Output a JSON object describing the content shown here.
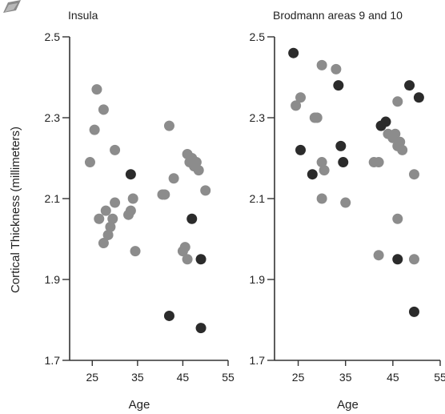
{
  "chart_data": {
    "type": "scatter",
    "ylabel": "Cortical Thickness (millimeters)",
    "ylim": [
      1.7,
      2.5
    ],
    "yticks": [
      "2.5",
      "2.3",
      "2.1",
      "1.9",
      "1.7"
    ],
    "xlim": [
      20,
      55
    ],
    "xticks": [
      "25",
      "35",
      "45",
      "55"
    ],
    "colors": {
      "light_point": "#8c8c8c",
      "dark_point": "#2b2b2b",
      "axis": "#333333"
    },
    "panels": [
      {
        "title": "Insula",
        "xlabel": "Age",
        "series": [
          {
            "color_key": "light_point",
            "points": [
              [
                24.5,
                2.19
              ],
              [
                25.5,
                2.27
              ],
              [
                26,
                2.37
              ],
              [
                26.5,
                2.05
              ],
              [
                27.5,
                2.32
              ],
              [
                28,
                2.07
              ],
              [
                27.5,
                1.99
              ],
              [
                28.5,
                2.01
              ],
              [
                29,
                2.03
              ],
              [
                29.5,
                2.05
              ],
              [
                30,
                2.09
              ],
              [
                30,
                2.22
              ],
              [
                33,
                2.06
              ],
              [
                34,
                2.1
              ],
              [
                34.5,
                1.97
              ],
              [
                33.5,
                2.07
              ],
              [
                40.5,
                2.11
              ],
              [
                41,
                2.11
              ],
              [
                42,
                2.28
              ],
              [
                43,
                2.15
              ],
              [
                45,
                1.97
              ],
              [
                46,
                1.95
              ],
              [
                45.5,
                1.98
              ],
              [
                46,
                2.21
              ],
              [
                46.5,
                2.19
              ],
              [
                47,
                2.2
              ],
              [
                47.5,
                2.18
              ],
              [
                48,
                2.19
              ],
              [
                48.5,
                2.17
              ],
              [
                50,
                2.12
              ]
            ]
          },
          {
            "color_key": "dark_point",
            "points": [
              [
                33.5,
                2.16
              ],
              [
                42,
                1.81
              ],
              [
                47,
                2.05
              ],
              [
                49,
                1.95
              ],
              [
                49,
                1.78
              ]
            ]
          }
        ]
      },
      {
        "title": "Brodmann areas 9 and 10",
        "xlabel": "Age",
        "series": [
          {
            "color_key": "light_point",
            "points": [
              [
                24.5,
                2.33
              ],
              [
                25.5,
                2.35
              ],
              [
                28.5,
                2.3
              ],
              [
                29,
                2.3
              ],
              [
                30,
                2.43
              ],
              [
                30,
                2.19
              ],
              [
                30.5,
                2.17
              ],
              [
                30,
                2.1
              ],
              [
                33,
                2.42
              ],
              [
                35,
                2.09
              ],
              [
                41,
                2.19
              ],
              [
                42,
                2.19
              ],
              [
                42,
                1.96
              ],
              [
                44,
                2.26
              ],
              [
                45,
                2.25
              ],
              [
                45.5,
                2.26
              ],
              [
                46,
                2.23
              ],
              [
                46.5,
                2.24
              ],
              [
                47,
                2.22
              ],
              [
                46,
                2.34
              ],
              [
                46,
                2.05
              ],
              [
                49.5,
                2.16
              ],
              [
                49.5,
                1.95
              ]
            ]
          },
          {
            "color_key": "dark_point",
            "points": [
              [
                24,
                2.46
              ],
              [
                25.5,
                2.22
              ],
              [
                28,
                2.16
              ],
              [
                33.5,
                2.38
              ],
              [
                34,
                2.23
              ],
              [
                34.5,
                2.19
              ],
              [
                42.5,
                2.28
              ],
              [
                43.5,
                2.29
              ],
              [
                46,
                1.95
              ],
              [
                48.5,
                2.38
              ],
              [
                50.5,
                2.35
              ],
              [
                49.5,
                1.82
              ]
            ]
          }
        ]
      }
    ]
  }
}
